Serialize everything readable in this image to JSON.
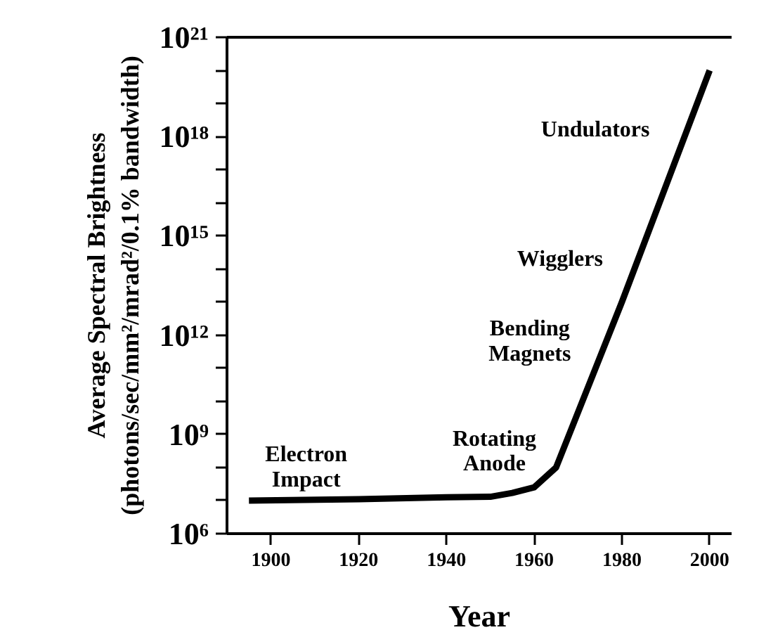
{
  "chart_data": {
    "type": "line",
    "xlabel": "Year",
    "ylabel": "Average Spectral Brightness\n(photons/sec/mm²/mrad²/0.1% bandwidth)",
    "x": [
      1895,
      1920,
      1940,
      1950,
      1955,
      1960,
      1965,
      1980,
      2000
    ],
    "series": [
      {
        "color": "#000000",
        "values": [
          10000000.0,
          11000000.0,
          12500000.0,
          13000000.0,
          17000000.0,
          25000000.0,
          100000000.0,
          10000000000000.0,
          1e+20
        ]
      }
    ],
    "log": "y",
    "marker": "none",
    "line_style": "solid",
    "grid": false,
    "xlim": [
      1890,
      2005
    ],
    "xticks": [
      1900,
      1920,
      1940,
      1960,
      1980,
      2000
    ],
    "ylim": [
      1000000.0,
      1e+21
    ],
    "yticks": [
      {
        "value": 1000000.0,
        "label": "10⁶"
      },
      {
        "value": 10000000.0,
        "label": null
      },
      {
        "value": 100000000.0,
        "label": null
      },
      {
        "value": 1000000000.0,
        "label": "10⁹"
      },
      {
        "value": 10000000000.0,
        "label": null
      },
      {
        "value": 100000000000.0,
        "label": null
      },
      {
        "value": 1000000000000.0,
        "label": "10¹²"
      },
      {
        "value": 10000000000000.0,
        "label": null
      },
      {
        "value": 100000000000000.0,
        "label": null
      },
      {
        "value": 1000000000000000.0,
        "label": "10¹⁵"
      },
      {
        "value": 1e+16,
        "label": null
      },
      {
        "value": 1e+17,
        "label": null
      },
      {
        "value": 1e+18,
        "label": "10¹⁸"
      },
      {
        "value": 1e+19,
        "label": null
      },
      {
        "value": 1e+20,
        "label": null
      },
      {
        "value": 1e+21,
        "label": "10²¹"
      }
    ],
    "annotations": [
      "Electron\nImpact",
      "Rotating\nAnode",
      "Bending\nMagnets",
      "Wigglers",
      "Undulators"
    ]
  }
}
